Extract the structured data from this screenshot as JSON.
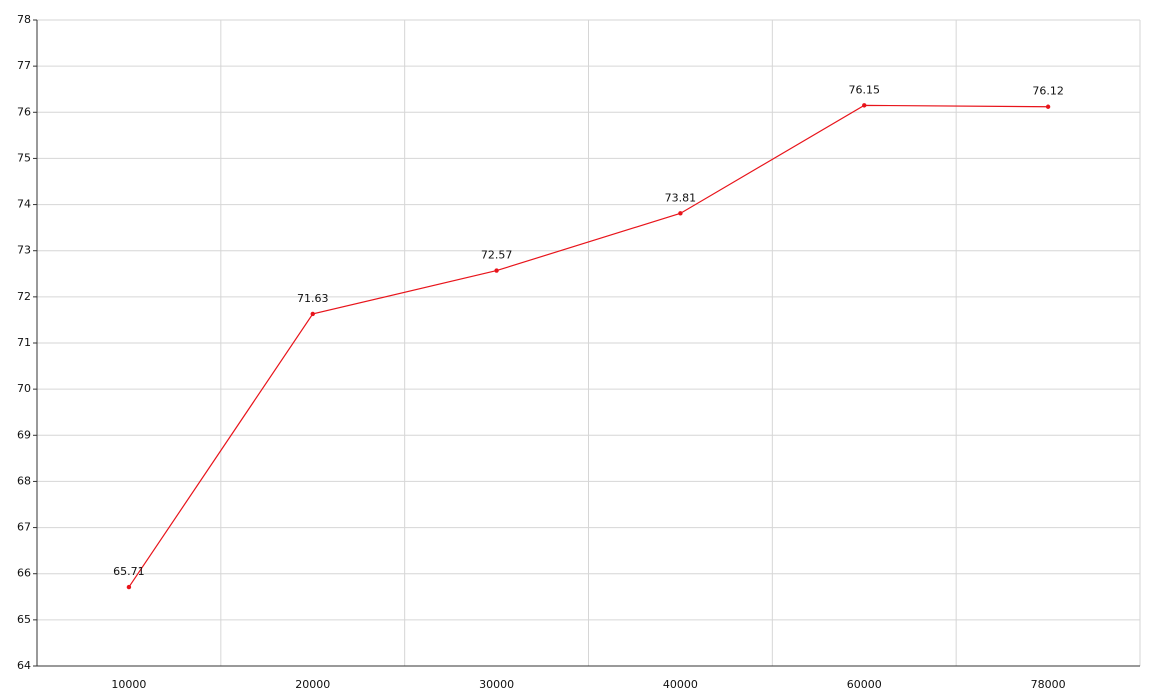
{
  "chart_data": {
    "type": "line",
    "categories": [
      "10000",
      "20000",
      "30000",
      "40000",
      "60000",
      "78000"
    ],
    "values": [
      65.71,
      71.63,
      72.57,
      73.81,
      76.15,
      76.12
    ],
    "color": "#e8141b",
    "ylim": [
      64,
      78
    ],
    "yticks": [
      64,
      65,
      66,
      67,
      68,
      69,
      70,
      71,
      72,
      73,
      74,
      75,
      76,
      77,
      78
    ],
    "grid": true
  }
}
